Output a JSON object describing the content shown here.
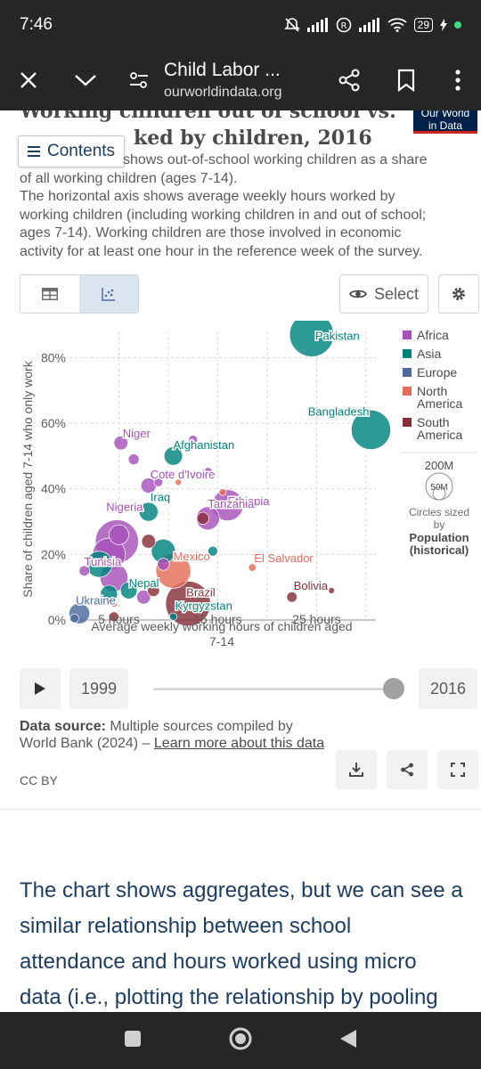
{
  "status_bar": {
    "time": "7:46",
    "battery": "29"
  },
  "browser": {
    "page_title": "Child Labor ...",
    "domain": "ourworldindata.org"
  },
  "page": {
    "clipped_title_line1": "Working children out of school vs.",
    "clipped_title_line2": "hours worked by children, 2016",
    "clipped_title_line2_visible": "ked by children, 2016",
    "logo_line1": "Our World",
    "logo_line2": "in Data",
    "contents_label": "Contents",
    "subtitle_partial": "shows out-of-school working children as a share of all working children (ages 7-14).",
    "subtitle_line1": "shows out-of-school working children as a share",
    "subtitle_line2": "of all working children (ages 7-14).",
    "subtitle_line3": "The horizontal axis shows average weekly hours worked by",
    "subtitle_line4": "working children (including working children in and out of school;",
    "subtitle_line5": "ages 7-14). Working children are those involved in economic",
    "subtitle_line6": "activity for at least one hour in the reference week of the survey.",
    "select_label": "Select"
  },
  "chart_data": {
    "type": "scatter",
    "title": "Working children out of school vs. hours worked by children, 2016",
    "xlabel": "Average weekly working hours of children aged 7-14",
    "xlabel_line1": "Average weekly working hours of children aged",
    "xlabel_line2": "7-14",
    "ylabel": "Share of children aged 7-14 who only work",
    "xlim": [
      0,
      31
    ],
    "ylim": [
      0,
      88
    ],
    "x_ticks": [
      5,
      10,
      15,
      20,
      25,
      30
    ],
    "x_tick_labels": [
      "5 hours",
      "",
      "15 hours",
      "",
      "25 hours",
      ""
    ],
    "y_ticks": [
      0,
      20,
      40,
      60,
      80
    ],
    "y_tick_labels": [
      "0%",
      "20%",
      "40%",
      "60%",
      "80%"
    ],
    "grid": true,
    "legend": [
      {
        "name": "Africa",
        "color": "#a652ba"
      },
      {
        "name": "Asia",
        "color": "#00847e"
      },
      {
        "name": "Europe",
        "color": "#4c6a9c"
      },
      {
        "name": "North America",
        "color": "#e56e5a"
      },
      {
        "name": "South America",
        "color": "#883039"
      }
    ],
    "size_legend": {
      "large": "200M",
      "small": "50M",
      "caption": "Circles sized by",
      "variable": "Population (historical)"
    },
    "points": [
      {
        "label": "Pakistan",
        "x": 24.5,
        "y": 87,
        "region": "Asia",
        "pop": 200,
        "show_label": true
      },
      {
        "label": "Bangladesh",
        "x": 30.5,
        "y": 58,
        "region": "Asia",
        "pop": 160,
        "show_label": true
      },
      {
        "label": "Niger",
        "x": 5.2,
        "y": 54,
        "region": "Africa",
        "pop": 20,
        "show_label": true
      },
      {
        "label": "Afghanistan",
        "x": 10.5,
        "y": 50,
        "region": "Asia",
        "pop": 35,
        "show_label": true
      },
      {
        "label": "Cote d'Ivoire",
        "x": 8.0,
        "y": 41,
        "region": "Africa",
        "pop": 24,
        "show_label": true
      },
      {
        "label": "Ethiopia",
        "x": 16.0,
        "y": 35,
        "region": "Africa",
        "pop": 100,
        "show_label": true
      },
      {
        "label": "Iraq",
        "x": 8.0,
        "y": 33,
        "region": "Asia",
        "pop": 37,
        "show_label": true
      },
      {
        "label": "Tanzania",
        "x": 14.0,
        "y": 31,
        "region": "Africa",
        "pop": 55,
        "show_label": true
      },
      {
        "label": "Nigeria",
        "x": 4.8,
        "y": 24,
        "region": "Africa",
        "pop": 190,
        "show_label": true
      },
      {
        "label": "Mexico",
        "x": 10.5,
        "y": 15,
        "region": "North America",
        "pop": 125,
        "show_label": true
      },
      {
        "label": "El Salvador",
        "x": 18.5,
        "y": 16,
        "region": "North America",
        "pop": 6,
        "show_label": true
      },
      {
        "label": "Tunisia",
        "x": 1.5,
        "y": 15,
        "region": "Africa",
        "pop": 11,
        "show_label": true
      },
      {
        "label": "Nepal",
        "x": 6.0,
        "y": 9,
        "region": "Asia",
        "pop": 29,
        "show_label": true
      },
      {
        "label": "Brazil",
        "x": 12.0,
        "y": 5,
        "region": "South America",
        "pop": 207,
        "show_label": true
      },
      {
        "label": "Bolivia",
        "x": 22.5,
        "y": 7,
        "region": "South America",
        "pop": 11,
        "show_label": true
      },
      {
        "label": "Ukraine",
        "x": 1.0,
        "y": 2,
        "region": "Europe",
        "pop": 44,
        "show_label": true
      },
      {
        "label": "Kyrgyzstan",
        "x": 10.5,
        "y": 1,
        "region": "Asia",
        "pop": 6,
        "show_label": true
      },
      {
        "label": "",
        "x": 5.0,
        "y": 26,
        "region": "Africa",
        "pop": 40,
        "show_label": false
      },
      {
        "label": "",
        "x": 6.5,
        "y": 49,
        "region": "Africa",
        "pop": 12,
        "show_label": false
      },
      {
        "label": "",
        "x": 9.0,
        "y": 42,
        "region": "Africa",
        "pop": 8,
        "show_label": false
      },
      {
        "label": "",
        "x": 7.0,
        "y": 56,
        "region": "Africa",
        "pop": 5,
        "show_label": false
      },
      {
        "label": "",
        "x": 12.5,
        "y": 55,
        "region": "Africa",
        "pop": 8,
        "show_label": false
      },
      {
        "label": "",
        "x": 14.0,
        "y": 45,
        "region": "Africa",
        "pop": 10,
        "show_label": false
      },
      {
        "label": "",
        "x": 4.0,
        "y": 20,
        "region": "Africa",
        "pop": 110,
        "show_label": false
      },
      {
        "label": "",
        "x": 4.5,
        "y": 13,
        "region": "Africa",
        "pop": 80,
        "show_label": false
      },
      {
        "label": "",
        "x": 7.5,
        "y": 7,
        "region": "Africa",
        "pop": 20,
        "show_label": false
      },
      {
        "label": "",
        "x": 9.5,
        "y": 17,
        "region": "Africa",
        "pop": 15,
        "show_label": false
      },
      {
        "label": "",
        "x": 3.0,
        "y": 17,
        "region": "Asia",
        "pop": 70,
        "show_label": false
      },
      {
        "label": "",
        "x": 9.5,
        "y": 21,
        "region": "Asia",
        "pop": 60,
        "show_label": false
      },
      {
        "label": "",
        "x": 14.5,
        "y": 21,
        "region": "Asia",
        "pop": 10,
        "show_label": false
      },
      {
        "label": "",
        "x": 4.0,
        "y": 8,
        "region": "Asia",
        "pop": 30,
        "show_label": false
      },
      {
        "label": "",
        "x": 8.0,
        "y": 24,
        "region": "South America",
        "pop": 20,
        "show_label": false
      },
      {
        "label": "",
        "x": 8.5,
        "y": 9,
        "region": "South America",
        "pop": 15,
        "show_label": false
      },
      {
        "label": "",
        "x": 13.5,
        "y": 31,
        "region": "South America",
        "pop": 15,
        "show_label": false
      },
      {
        "label": "",
        "x": 4.5,
        "y": 1,
        "region": "South America",
        "pop": 10,
        "show_label": false
      },
      {
        "label": "",
        "x": 26.5,
        "y": 9,
        "region": "South America",
        "pop": 4,
        "show_label": false
      },
      {
        "label": "",
        "x": 11.0,
        "y": 42,
        "region": "North America",
        "pop": 4,
        "show_label": false
      },
      {
        "label": "",
        "x": 15.5,
        "y": 39,
        "region": "North America",
        "pop": 5,
        "show_label": false
      },
      {
        "label": "",
        "x": 4.5,
        "y": 5,
        "region": "North America",
        "pop": 5,
        "show_label": false
      },
      {
        "label": "",
        "x": 0.5,
        "y": 0.5,
        "region": "Europe",
        "pop": 8,
        "show_label": false
      }
    ]
  },
  "timeline": {
    "start_year": "1999",
    "end_year": "2016",
    "position": 1.0
  },
  "source": {
    "label": "Data source:",
    "text": "Multiple sources compiled by World Bank (2024) –",
    "link": "Learn more about this data",
    "license": "CC BY"
  },
  "article": {
    "line1": "The chart shows aggregates, but we can see a",
    "line2": "similar relationship between school",
    "line3": "attendance and hours worked using micro",
    "line4": "data (i.e., plotting the relationship by pooling"
  }
}
